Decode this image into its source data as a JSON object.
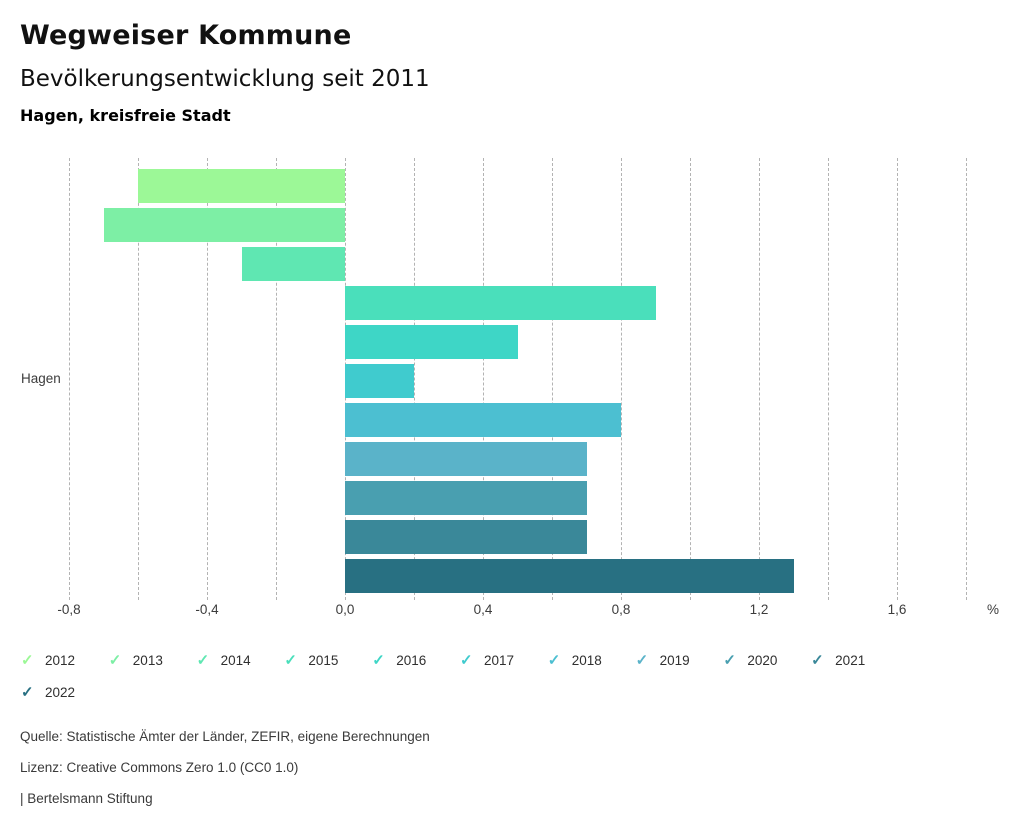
{
  "header": {
    "title": "Wegweiser Kommune",
    "subtitle": "Bevölkerungsentwicklung seit 2011",
    "region": "Hagen, kreisfreie Stadt"
  },
  "chart_data": {
    "type": "bar",
    "orientation": "horizontal",
    "title": "Bevölkerungsentwicklung seit 2011",
    "categories": [
      "Hagen"
    ],
    "category_label": "Hagen",
    "unit": "%",
    "series": [
      {
        "name": "2012",
        "value": -0.6,
        "color": "#9CF897"
      },
      {
        "name": "2013",
        "value": -0.7,
        "color": "#7DEFA5"
      },
      {
        "name": "2014",
        "value": -0.3,
        "color": "#5FE7B2"
      },
      {
        "name": "2015",
        "value": 0.9,
        "color": "#4ADFBB"
      },
      {
        "name": "2016",
        "value": 0.5,
        "color": "#3ED6C6"
      },
      {
        "name": "2017",
        "value": 0.2,
        "color": "#40CBCE"
      },
      {
        "name": "2018",
        "value": 0.8,
        "color": "#4CBFD1"
      },
      {
        "name": "2019",
        "value": 0.7,
        "color": "#5AB3C9"
      },
      {
        "name": "2020",
        "value": 0.7,
        "color": "#499FB0"
      },
      {
        "name": "2021",
        "value": 0.7,
        "color": "#3A8899"
      },
      {
        "name": "2022",
        "value": 1.3,
        "color": "#287082"
      }
    ],
    "axis": {
      "xlim": [
        -0.9,
        1.9
      ],
      "gridline_range": [
        -0.8,
        1.8
      ],
      "gridline_step": 0.2,
      "grid": "dashed",
      "ticks": [
        {
          "value": -0.8,
          "label": "-0,8"
        },
        {
          "value": -0.4,
          "label": "-0,4"
        },
        {
          "value": 0.0,
          "label": "0,0"
        },
        {
          "value": 0.4,
          "label": "0,4"
        },
        {
          "value": 0.8,
          "label": "0,8"
        },
        {
          "value": 1.2,
          "label": "1,2"
        },
        {
          "value": 1.6,
          "label": "1,6"
        }
      ]
    },
    "legend_position": "bottom",
    "legend_check_glyph": "✓"
  },
  "footer": {
    "source": "Quelle: Statistische Ämter der Länder, ZEFIR, eigene Berechnungen",
    "license": "Lizenz: Creative Commons Zero 1.0 (CC0 1.0)",
    "attribution": "| Bertelsmann Stiftung"
  }
}
